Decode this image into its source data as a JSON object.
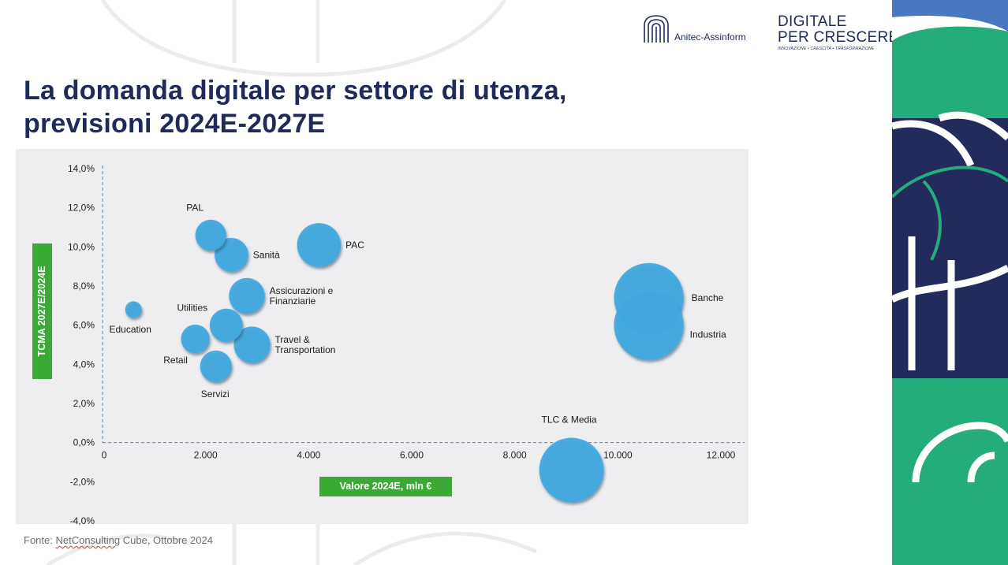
{
  "slide": {
    "title_line1": "La domanda digitale per settore di utenza,",
    "title_line2": "previsioni 2024E-2027E",
    "source_prefix": "Fonte: ",
    "source_link": "NetConsulting",
    "source_suffix": " Cube, Ottobre 2024"
  },
  "logos": {
    "anitec": "Anitec-Assinform",
    "digitale_line1": "DIGITALE",
    "digitale_line2": "PER CRESCERE",
    "digitale_tagline": "INNOVAZIONE • CRESCITA • TRASFORMAZIONE"
  },
  "colors": {
    "title": "#1f2a5a",
    "bubble": "#3fa9e0",
    "axis_label_bg": "#3aaa35",
    "panel_bg": "#eeeef0",
    "deco_navy": "#232a5c",
    "deco_green": "#24ad7b",
    "deco_blue": "#4a78c0"
  },
  "chart_data": {
    "type": "scatter",
    "subtype": "bubble",
    "xlabel": "Valore 2024E, mln €",
    "ylabel": "TCMA 2027E/2024E",
    "xlim": [
      0,
      12000
    ],
    "ylim": [
      -4.0,
      14.0
    ],
    "x_ticks": [
      "0",
      "2.000",
      "4.000",
      "6.000",
      "8.000",
      "10.000",
      "12.000"
    ],
    "x_tick_values": [
      0,
      2000,
      4000,
      6000,
      8000,
      10000,
      12000
    ],
    "y_ticks": [
      "14,0%",
      "12,0%",
      "10,0%",
      "8,0%",
      "6,0%",
      "4,0%",
      "2,0%",
      "0,0%",
      "-2,0%",
      "-4,0%"
    ],
    "y_tick_values": [
      14,
      12,
      10,
      8,
      6,
      4,
      2,
      0,
      -2,
      -4
    ],
    "grid": false,
    "points": [
      {
        "label": "PAL",
        "x": 2100,
        "y": 10.6,
        "size": 2100
      },
      {
        "label": "Sanità",
        "x": 2500,
        "y": 9.6,
        "size": 2500
      },
      {
        "label": "PAC",
        "x": 4200,
        "y": 10.1,
        "size": 4200
      },
      {
        "label": "Assicurazioni e\nFinanziarie",
        "x": 2800,
        "y": 7.5,
        "size": 2800
      },
      {
        "label": "Education",
        "x": 600,
        "y": 6.8,
        "size": 600
      },
      {
        "label": "Utilities",
        "x": 2400,
        "y": 6.0,
        "size": 2400
      },
      {
        "label": "Retail",
        "x": 1800,
        "y": 5.3,
        "size": 1800
      },
      {
        "label": "Travel &\nTransportation",
        "x": 2900,
        "y": 5.0,
        "size": 2900
      },
      {
        "label": "Servizi",
        "x": 2200,
        "y": 3.9,
        "size": 2200
      },
      {
        "label": "Banche",
        "x": 10600,
        "y": 7.4,
        "size": 10600
      },
      {
        "label": "Industria",
        "x": 10600,
        "y": 6.0,
        "size": 10600
      },
      {
        "label": "TLC & Media",
        "x": 9100,
        "y": -1.4,
        "size": 9100
      }
    ]
  }
}
